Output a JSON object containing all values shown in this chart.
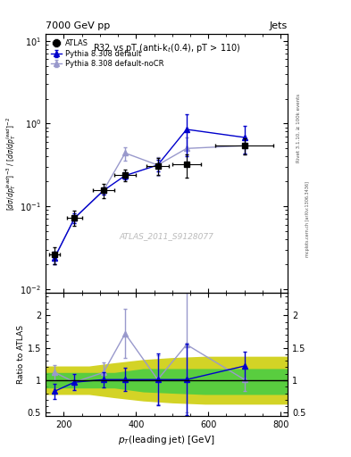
{
  "title_top": "7000 GeV pp",
  "title_right": "Jets",
  "plot_title": "R32 vs pT (anti-k_{t}(0.4), pT > 110)",
  "watermark": "ATLAS_2011_S9128077",
  "rivet_label": "Rivet 3.1.10, ≥ 100k events",
  "arxiv_label": "mcplots.cern.ch [arXiv:1306.3436]",
  "ylabel_ratio": "Ratio to ATLAS",
  "xlabel": "p_{T}(leading jet) [GeV]",
  "atlas_x": [
    175,
    230,
    310,
    370,
    460,
    540,
    700
  ],
  "atlas_y": [
    0.026,
    0.073,
    0.155,
    0.24,
    0.31,
    0.32,
    0.54
  ],
  "atlas_yerr_lo": [
    0.006,
    0.015,
    0.03,
    0.04,
    0.07,
    0.1,
    0.12
  ],
  "atlas_yerr_hi": [
    0.006,
    0.015,
    0.03,
    0.04,
    0.07,
    0.1,
    0.12
  ],
  "atlas_xerr": [
    15,
    20,
    30,
    30,
    30,
    40,
    80
  ],
  "pythia_def_x": [
    175,
    230,
    310,
    370,
    460,
    540,
    700
  ],
  "pythia_def_y": [
    0.024,
    0.072,
    0.155,
    0.235,
    0.315,
    0.85,
    0.68
  ],
  "pythia_def_yerr_lo": [
    0.004,
    0.01,
    0.015,
    0.025,
    0.05,
    0.45,
    0.25
  ],
  "pythia_def_yerr_hi": [
    0.004,
    0.01,
    0.015,
    0.025,
    0.05,
    0.45,
    0.25
  ],
  "pythia_nocr_x": [
    175,
    230,
    310,
    370,
    460,
    540,
    700
  ],
  "pythia_nocr_y": [
    0.024,
    0.072,
    0.155,
    0.44,
    0.315,
    0.5,
    0.54
  ],
  "pythia_nocr_yerr_lo": [
    0.004,
    0.01,
    0.015,
    0.08,
    0.08,
    0.18,
    0.12
  ],
  "pythia_nocr_yerr_hi": [
    0.004,
    0.01,
    0.015,
    0.08,
    0.08,
    0.18,
    0.12
  ],
  "ratio_def_x": [
    175,
    230,
    310,
    370,
    460,
    540,
    700
  ],
  "ratio_def_y": [
    0.83,
    0.97,
    1.01,
    1.01,
    1.01,
    1.01,
    1.22
  ],
  "ratio_def_yerr_lo": [
    0.12,
    0.12,
    0.12,
    0.18,
    0.4,
    0.55,
    0.22
  ],
  "ratio_def_yerr_hi": [
    0.12,
    0.12,
    0.12,
    0.18,
    0.4,
    0.55,
    0.22
  ],
  "ratio_nocr_x": [
    175,
    230,
    310,
    370,
    460,
    540,
    700
  ],
  "ratio_nocr_y": [
    1.12,
    0.97,
    1.12,
    1.72,
    1.01,
    1.55,
    1.01
  ],
  "ratio_nocr_yerr_lo": [
    0.12,
    0.12,
    0.15,
    0.38,
    0.38,
    1.05,
    0.18
  ],
  "ratio_nocr_yerr_hi": [
    0.12,
    0.12,
    0.15,
    0.38,
    0.38,
    1.05,
    0.18
  ],
  "band_green_x": [
    150,
    270,
    340,
    420,
    500,
    590,
    820
  ],
  "band_green_lo": [
    0.88,
    0.88,
    0.88,
    0.82,
    0.8,
    0.78,
    0.78
  ],
  "band_green_hi": [
    1.12,
    1.12,
    1.12,
    1.18,
    1.18,
    1.18,
    1.18
  ],
  "band_yellow_x": [
    150,
    270,
    340,
    420,
    500,
    590,
    820
  ],
  "band_yellow_lo": [
    0.78,
    0.78,
    0.73,
    0.68,
    0.65,
    0.63,
    0.63
  ],
  "band_yellow_hi": [
    1.22,
    1.22,
    1.27,
    1.32,
    1.35,
    1.37,
    1.37
  ],
  "xlim": [
    150,
    820
  ],
  "ylim_main_lo": 0.009,
  "ylim_main_hi": 12.0,
  "ylim_ratio_lo": 0.45,
  "ylim_ratio_hi": 2.35,
  "color_atlas": "#000000",
  "color_pythia_def": "#0000cc",
  "color_pythia_nocr": "#9999cc",
  "color_green": "#44cc44",
  "color_yellow": "#cccc00",
  "color_watermark": "#bbbbbb"
}
